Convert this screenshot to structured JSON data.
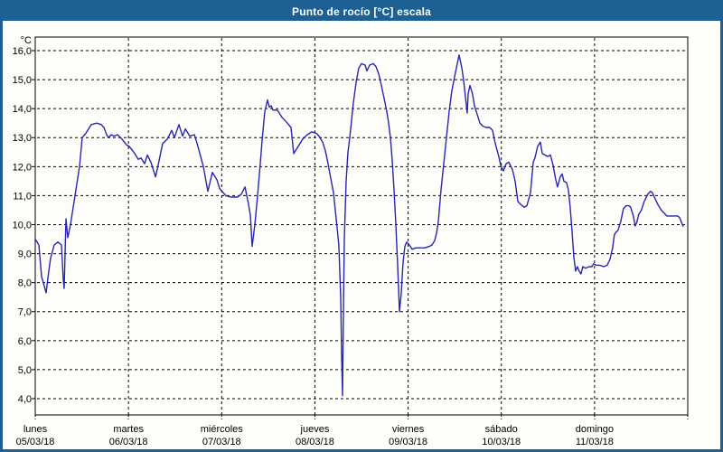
{
  "window": {
    "title": "Punto de rocío [°C] escala"
  },
  "colors": {
    "titlebar": "#1d6094",
    "window_border": "#1d6094",
    "line": "#2626b0",
    "grid": "#000000",
    "background": "#fdfdfa",
    "text": "#000000"
  },
  "chart_data": {
    "type": "line",
    "title": "Punto de rocío [°C] escala",
    "y_unit_label": "°C",
    "ylabel": "",
    "xlabel": "",
    "ylim": [
      4.0,
      16.0
    ],
    "x_range_days": 7,
    "grid": "dashed",
    "legend": "none",
    "y_ticks": [
      {
        "value": 16,
        "label": "16,0"
      },
      {
        "value": 15,
        "label": "15,0"
      },
      {
        "value": 14,
        "label": "14,0"
      },
      {
        "value": 13,
        "label": "13,0"
      },
      {
        "value": 12,
        "label": "12,0"
      },
      {
        "value": 11,
        "label": "11,0"
      },
      {
        "value": 10,
        "label": "10,0"
      },
      {
        "value": 9,
        "label": "9,0"
      },
      {
        "value": 8,
        "label": "8,0"
      },
      {
        "value": 7,
        "label": "7,0"
      },
      {
        "value": 6,
        "label": "6,0"
      },
      {
        "value": 5,
        "label": "5,0"
      },
      {
        "value": 4,
        "label": "4,0"
      }
    ],
    "x_days": [
      {
        "name": "lunes",
        "date": "05/03/18"
      },
      {
        "name": "martes",
        "date": "06/03/18"
      },
      {
        "name": "miércoles",
        "date": "07/03/18"
      },
      {
        "name": "jueves",
        "date": "08/03/18"
      },
      {
        "name": "viernes",
        "date": "09/03/18"
      },
      {
        "name": "sábado",
        "date": "10/03/18"
      },
      {
        "name": "domingo",
        "date": "11/03/18"
      }
    ],
    "series": [
      {
        "name": "Punto de rocío",
        "points": [
          [
            0.0,
            9.5
          ],
          [
            0.039,
            9.3
          ],
          [
            0.068,
            8.2
          ],
          [
            0.087,
            8.0
          ],
          [
            0.116,
            7.65
          ],
          [
            0.145,
            8.4
          ],
          [
            0.165,
            8.85
          ],
          [
            0.204,
            9.3
          ],
          [
            0.242,
            9.4
          ],
          [
            0.281,
            9.3
          ],
          [
            0.301,
            8.1
          ],
          [
            0.31,
            7.8
          ],
          [
            0.33,
            10.2
          ],
          [
            0.349,
            9.55
          ],
          [
            0.378,
            10.0
          ],
          [
            0.427,
            11.0
          ],
          [
            0.475,
            12.0
          ],
          [
            0.504,
            13.0
          ],
          [
            0.543,
            13.15
          ],
          [
            0.601,
            13.45
          ],
          [
            0.659,
            13.5
          ],
          [
            0.708,
            13.45
          ],
          [
            0.737,
            13.35
          ],
          [
            0.766,
            13.1
          ],
          [
            0.785,
            13.0
          ],
          [
            0.815,
            13.1
          ],
          [
            0.844,
            13.05
          ],
          [
            0.882,
            13.1
          ],
          [
            0.931,
            12.95
          ],
          [
            0.979,
            12.75
          ],
          [
            1.008,
            12.7
          ],
          [
            1.057,
            12.5
          ],
          [
            1.105,
            12.25
          ],
          [
            1.134,
            12.3
          ],
          [
            1.173,
            12.1
          ],
          [
            1.202,
            12.4
          ],
          [
            1.241,
            12.15
          ],
          [
            1.29,
            11.65
          ],
          [
            1.319,
            12.05
          ],
          [
            1.367,
            12.8
          ],
          [
            1.416,
            12.95
          ],
          [
            1.464,
            13.25
          ],
          [
            1.493,
            13.0
          ],
          [
            1.542,
            13.45
          ],
          [
            1.58,
            13.05
          ],
          [
            1.61,
            13.3
          ],
          [
            1.658,
            13.05
          ],
          [
            1.707,
            13.1
          ],
          [
            1.736,
            12.8
          ],
          [
            1.774,
            12.35
          ],
          [
            1.803,
            12.0
          ],
          [
            1.852,
            11.15
          ],
          [
            1.9,
            11.8
          ],
          [
            1.949,
            11.55
          ],
          [
            1.978,
            11.25
          ],
          [
            2.017,
            11.1
          ],
          [
            2.046,
            11.0
          ],
          [
            2.094,
            10.95
          ],
          [
            2.172,
            10.95
          ],
          [
            2.211,
            11.05
          ],
          [
            2.25,
            11.3
          ],
          [
            2.288,
            10.7
          ],
          [
            2.308,
            10.3
          ],
          [
            2.327,
            9.25
          ],
          [
            2.356,
            10.0
          ],
          [
            2.385,
            11.0
          ],
          [
            2.414,
            12.1
          ],
          [
            2.434,
            12.9
          ],
          [
            2.463,
            13.9
          ],
          [
            2.492,
            14.3
          ],
          [
            2.511,
            14.05
          ],
          [
            2.531,
            14.1
          ],
          [
            2.55,
            13.95
          ],
          [
            2.598,
            13.95
          ],
          [
            2.647,
            13.7
          ],
          [
            2.705,
            13.5
          ],
          [
            2.744,
            13.35
          ],
          [
            2.773,
            12.45
          ],
          [
            2.821,
            12.7
          ],
          [
            2.87,
            12.95
          ],
          [
            2.918,
            13.1
          ],
          [
            2.967,
            13.2
          ],
          [
            3.015,
            13.15
          ],
          [
            3.044,
            13.05
          ],
          [
            3.083,
            12.85
          ],
          [
            3.112,
            12.55
          ],
          [
            3.141,
            12.1
          ],
          [
            3.17,
            11.6
          ],
          [
            3.199,
            11.1
          ],
          [
            3.219,
            10.5
          ],
          [
            3.238,
            9.9
          ],
          [
            3.257,
            9.3
          ],
          [
            3.277,
            7.5
          ],
          [
            3.287,
            5.5
          ],
          [
            3.296,
            4.1
          ],
          [
            3.306,
            7.0
          ],
          [
            3.316,
            9.5
          ],
          [
            3.335,
            11.5
          ],
          [
            3.355,
            12.5
          ],
          [
            3.374,
            13.0
          ],
          [
            3.393,
            13.6
          ],
          [
            3.413,
            14.2
          ],
          [
            3.442,
            14.9
          ],
          [
            3.471,
            15.4
          ],
          [
            3.5,
            15.55
          ],
          [
            3.539,
            15.5
          ],
          [
            3.558,
            15.3
          ],
          [
            3.587,
            15.5
          ],
          [
            3.626,
            15.55
          ],
          [
            3.655,
            15.45
          ],
          [
            3.684,
            15.2
          ],
          [
            3.713,
            14.8
          ],
          [
            3.742,
            14.35
          ],
          [
            3.771,
            13.9
          ],
          [
            3.791,
            13.5
          ],
          [
            3.81,
            13.0
          ],
          [
            3.83,
            12.2
          ],
          [
            3.849,
            11.2
          ],
          [
            3.868,
            10.0
          ],
          [
            3.888,
            8.6
          ],
          [
            3.907,
            7.0
          ],
          [
            3.926,
            7.6
          ],
          [
            3.946,
            8.7
          ],
          [
            3.965,
            9.25
          ],
          [
            3.984,
            9.4
          ],
          [
            4.014,
            9.3
          ],
          [
            4.043,
            9.15
          ],
          [
            4.081,
            9.2
          ],
          [
            4.13,
            9.2
          ],
          [
            4.178,
            9.2
          ],
          [
            4.227,
            9.25
          ],
          [
            4.256,
            9.3
          ],
          [
            4.285,
            9.45
          ],
          [
            4.305,
            9.7
          ],
          [
            4.324,
            10.1
          ],
          [
            4.353,
            11.2
          ],
          [
            4.382,
            12.1
          ],
          [
            4.411,
            13.0
          ],
          [
            4.44,
            13.9
          ],
          [
            4.469,
            14.6
          ],
          [
            4.499,
            15.1
          ],
          [
            4.528,
            15.55
          ],
          [
            4.547,
            15.85
          ],
          [
            4.576,
            15.4
          ],
          [
            4.595,
            15.0
          ],
          [
            4.615,
            14.4
          ],
          [
            4.634,
            13.85
          ],
          [
            4.644,
            14.5
          ],
          [
            4.663,
            14.8
          ],
          [
            4.692,
            14.5
          ],
          [
            4.712,
            14.1
          ],
          [
            4.741,
            13.8
          ],
          [
            4.77,
            13.5
          ],
          [
            4.799,
            13.4
          ],
          [
            4.838,
            13.35
          ],
          [
            4.876,
            13.35
          ],
          [
            4.906,
            13.25
          ],
          [
            4.935,
            12.8
          ],
          [
            4.973,
            12.35
          ],
          [
            4.993,
            12.05
          ],
          [
            5.022,
            11.85
          ],
          [
            5.051,
            12.1
          ],
          [
            5.08,
            12.15
          ],
          [
            5.119,
            11.9
          ],
          [
            5.148,
            11.5
          ],
          [
            5.177,
            10.8
          ],
          [
            5.206,
            10.7
          ],
          [
            5.245,
            10.6
          ],
          [
            5.274,
            10.65
          ],
          [
            5.313,
            11.1
          ],
          [
            5.342,
            12.15
          ],
          [
            5.361,
            12.3
          ],
          [
            5.39,
            12.7
          ],
          [
            5.419,
            12.85
          ],
          [
            5.439,
            12.45
          ],
          [
            5.468,
            12.4
          ],
          [
            5.497,
            12.35
          ],
          [
            5.526,
            12.4
          ],
          [
            5.555,
            12.05
          ],
          [
            5.584,
            11.55
          ],
          [
            5.603,
            11.3
          ],
          [
            5.632,
            11.65
          ],
          [
            5.652,
            11.75
          ],
          [
            5.671,
            11.5
          ],
          [
            5.7,
            11.45
          ],
          [
            5.719,
            11.2
          ],
          [
            5.739,
            10.6
          ],
          [
            5.758,
            9.8
          ],
          [
            5.777,
            8.9
          ],
          [
            5.797,
            8.4
          ],
          [
            5.816,
            8.55
          ],
          [
            5.835,
            8.4
          ],
          [
            5.855,
            8.3
          ],
          [
            5.874,
            8.55
          ],
          [
            5.903,
            8.5
          ],
          [
            5.942,
            8.55
          ],
          [
            5.971,
            8.55
          ],
          [
            5.99,
            8.65
          ],
          [
            6.019,
            8.6
          ],
          [
            6.058,
            8.6
          ],
          [
            6.097,
            8.55
          ],
          [
            6.135,
            8.6
          ],
          [
            6.165,
            8.8
          ],
          [
            6.194,
            9.2
          ],
          [
            6.213,
            9.65
          ],
          [
            6.232,
            9.75
          ],
          [
            6.252,
            9.8
          ],
          [
            6.281,
            10.1
          ],
          [
            6.31,
            10.55
          ],
          [
            6.339,
            10.65
          ],
          [
            6.368,
            10.65
          ],
          [
            6.387,
            10.6
          ],
          [
            6.416,
            10.3
          ],
          [
            6.436,
            9.95
          ],
          [
            6.455,
            10.1
          ],
          [
            6.474,
            10.35
          ],
          [
            6.503,
            10.5
          ],
          [
            6.533,
            10.8
          ],
          [
            6.571,
            11.05
          ],
          [
            6.6,
            11.15
          ],
          [
            6.62,
            11.1
          ],
          [
            6.649,
            10.9
          ],
          [
            6.678,
            10.7
          ],
          [
            6.717,
            10.5
          ],
          [
            6.746,
            10.4
          ],
          [
            6.775,
            10.3
          ],
          [
            6.814,
            10.3
          ],
          [
            6.853,
            10.3
          ],
          [
            6.891,
            10.3
          ],
          [
            6.911,
            10.25
          ],
          [
            6.93,
            10.1
          ],
          [
            6.95,
            9.95
          ]
        ]
      }
    ]
  }
}
